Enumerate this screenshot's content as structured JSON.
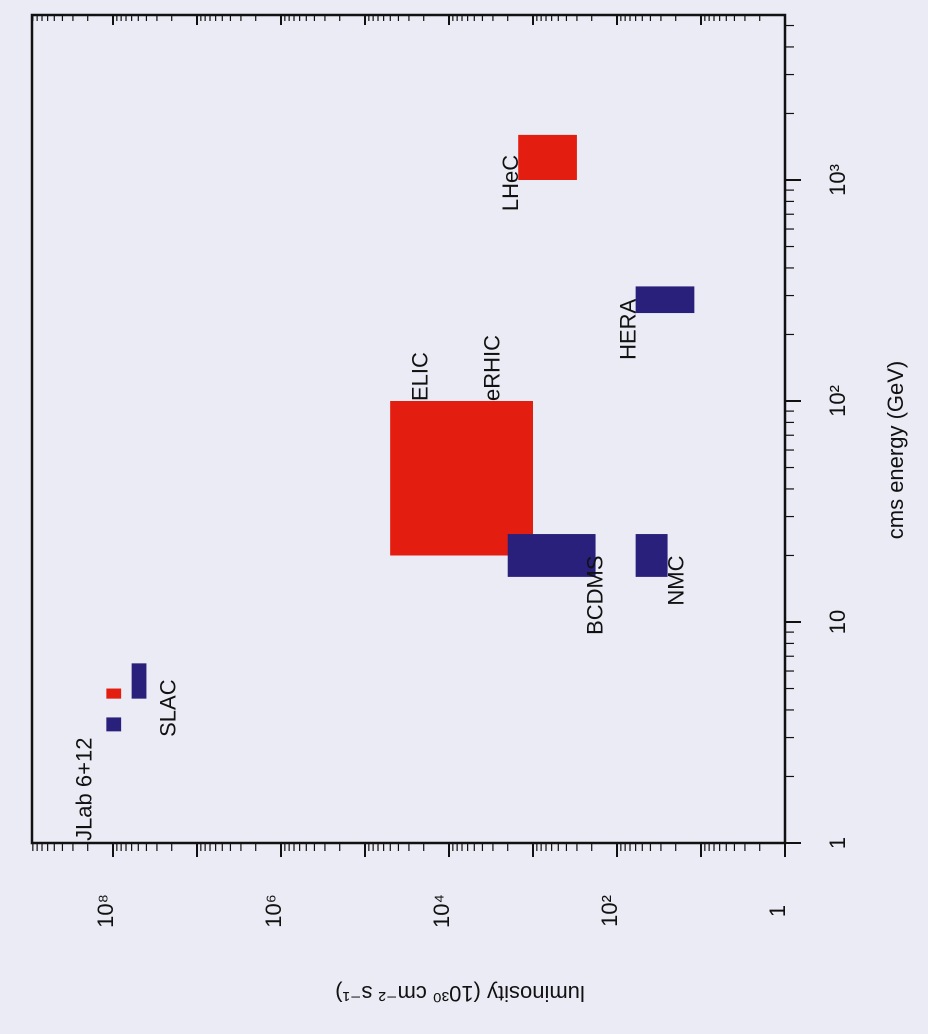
{
  "chart_data": {
    "type": "bar",
    "title": "",
    "xlabel": "cms energy (GeV)",
    "ylabel": "luminosity (10³⁰ cm⁻² s⁻¹)",
    "x_scale": "log",
    "y_scale": "log",
    "xlim": [
      1,
      7000
    ],
    "ylim": [
      1,
      1000000000.0
    ],
    "x_ticks": [
      {
        "value": 1,
        "label": "1"
      },
      {
        "value": 10,
        "label": "10"
      },
      {
        "value": 100,
        "label": "10²"
      },
      {
        "value": 1000,
        "label": "10³"
      }
    ],
    "y_ticks": [
      {
        "value": 1,
        "label": "1"
      },
      {
        "value": 100,
        "label": "10²"
      },
      {
        "value": 10000,
        "label": "10⁴"
      },
      {
        "value": 1000000,
        "label": "10⁶"
      },
      {
        "value": 100000000,
        "label": "10⁸"
      }
    ],
    "grid": false,
    "legend": "none",
    "series": [
      {
        "color": "#e31e10"
      },
      {
        "color": "#28207a"
      }
    ],
    "boxes": [
      {
        "label": "LHeC",
        "x": [
          1000,
          1600
        ],
        "y": [
          300,
          1500
        ],
        "color": "#e31e10"
      },
      {
        "label": "HERA",
        "x": [
          250,
          330
        ],
        "y": [
          12,
          60
        ],
        "color": "#28207a"
      },
      {
        "label": "ELIC",
        "x": [
          20,
          100
        ],
        "y": [
          1000,
          50000
        ],
        "color": "#e31e10"
      },
      {
        "label": "eRHIC",
        "x": [
          20,
          100
        ],
        "y": [
          1000,
          50000
        ],
        "color": "#e31e10"
      },
      {
        "label": "BCDMS",
        "x": [
          16,
          25
        ],
        "y": [
          180,
          2000
        ],
        "color": "#28207a"
      },
      {
        "label": "NMC",
        "x": [
          16,
          25
        ],
        "y": [
          25,
          60
        ],
        "color": "#28207a"
      },
      {
        "label": "SLAC",
        "x": [
          4.5,
          6.5
        ],
        "y": [
          40000000.0,
          60000000.0
        ],
        "color": "#28207a"
      },
      {
        "label": "JLab 6+12",
        "x": [
          4.5,
          5
        ],
        "y": [
          80000000.0,
          120000000.0
        ],
        "color": "#e31e10"
      },
      {
        "label": "",
        "x": [
          3.2,
          3.7
        ],
        "y": [
          80000000.0,
          120000000.0
        ],
        "color": "#28207a"
      }
    ],
    "labels": [
      {
        "text": "LHeC",
        "x": 1300,
        "y": 1500,
        "anchor": "end",
        "side": "left"
      },
      {
        "text": "HERA",
        "x": 290,
        "y": 60,
        "anchor": "end",
        "side": "left"
      },
      {
        "text": "ELIC",
        "x": 100,
        "y": 18000,
        "anchor": "start",
        "side": "left"
      },
      {
        "text": "eRHIC",
        "x": 100,
        "y": 2500,
        "anchor": "start",
        "side": "left"
      },
      {
        "text": "BCDMS",
        "x": 20,
        "y": 230,
        "anchor": "end",
        "side": "right"
      },
      {
        "text": "NMC",
        "x": 20,
        "y": 25,
        "anchor": "end",
        "side": "right"
      },
      {
        "text": "SLAC",
        "x": 5.5,
        "y": 28000000.0,
        "anchor": "end",
        "side": "right"
      },
      {
        "text": "JLab 6+12",
        "x": 3.0,
        "y": 180000000.0,
        "anchor": "end",
        "side": "left"
      }
    ]
  }
}
